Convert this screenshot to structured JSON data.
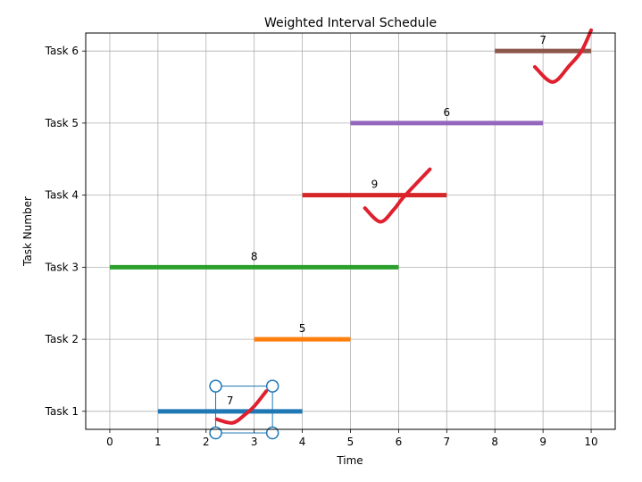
{
  "chart_data": {
    "type": "bar",
    "title": "Weighted Interval Schedule",
    "xlabel": "Time",
    "ylabel": "Task Number",
    "xlim": [
      -0.5,
      10.5
    ],
    "ylim": [
      0.75,
      6.25
    ],
    "xticks": [
      0,
      1,
      2,
      3,
      4,
      5,
      6,
      7,
      8,
      9,
      10
    ],
    "grid": true,
    "tasks": [
      {
        "label": "Task 1",
        "y": 1,
        "start": 1,
        "end": 4,
        "weight": "7",
        "color": "#1f77b4"
      },
      {
        "label": "Task 2",
        "y": 2,
        "start": 3,
        "end": 5,
        "weight": "5",
        "color": "#ff7f0e"
      },
      {
        "label": "Task 3",
        "y": 3,
        "start": 0,
        "end": 6,
        "weight": "8",
        "color": "#2ca02c"
      },
      {
        "label": "Task 4",
        "y": 4,
        "start": 4,
        "end": 7,
        "weight": "9",
        "color": "#d62728"
      },
      {
        "label": "Task 5",
        "y": 5,
        "start": 5,
        "end": 9,
        "weight": "6",
        "color": "#9467bd"
      },
      {
        "label": "Task 6",
        "y": 6,
        "start": 8,
        "end": 10,
        "weight": "7",
        "color": "#8c564b"
      }
    ],
    "checkmarks": [
      {
        "task": 1,
        "color": "#e0202e",
        "points": [
          [
            2.22,
            0.89
          ],
          [
            2.55,
            0.84
          ],
          [
            2.8,
            0.95
          ],
          [
            3.0,
            1.07
          ],
          [
            3.25,
            1.28
          ]
        ]
      },
      {
        "task": 4,
        "color": "#e0202e",
        "points": [
          [
            5.3,
            3.82
          ],
          [
            5.62,
            3.63
          ],
          [
            5.9,
            3.8
          ],
          [
            6.1,
            3.97
          ],
          [
            6.65,
            4.36
          ]
        ]
      },
      {
        "task": 6,
        "color": "#e0202e",
        "points": [
          [
            8.83,
            5.78
          ],
          [
            9.2,
            5.57
          ],
          [
            9.55,
            5.8
          ],
          [
            9.8,
            6.0
          ],
          [
            10.0,
            6.29
          ]
        ]
      }
    ],
    "selection": {
      "task": 1,
      "x0": 2.2,
      "x1": 3.38,
      "y0": 0.7,
      "y1": 1.35,
      "color": "#1f77b4"
    }
  }
}
